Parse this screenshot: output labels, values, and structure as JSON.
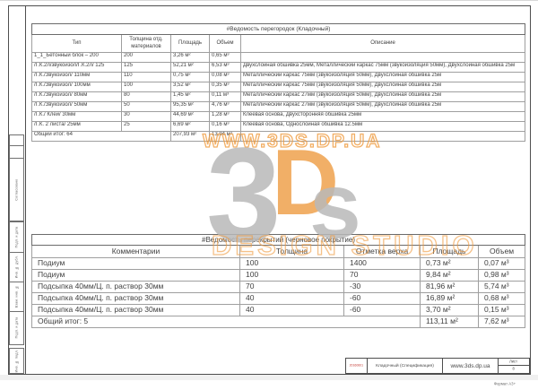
{
  "sheet": {
    "stamp_code": "20160601",
    "doc_title": "Кладочный (Спецификация)",
    "website": "www.3ds.dp.ua",
    "sheet_label": "Лист",
    "sheet_number": "8",
    "format_label": "Формат А3+"
  },
  "side_strip": {
    "approval_label": "Согласовано",
    "cells": [
      "Подп. и дата",
      "Инв. № дубл.",
      "Взам. инв. №",
      "Подп. и дата",
      "Инв. № подл."
    ]
  },
  "watermark": {
    "url_text": "WWW.3DS.DP.UA",
    "logo_3": "3",
    "logo_d": "D",
    "logo_s": "s",
    "studio_text": "DESIGN STUDIO",
    "orange": "#ee983a",
    "gray": "#b9b9b9"
  },
  "partitions_table": {
    "title": "#Ведомость перегородок (Кладочный)",
    "columns": [
      "Тип",
      "Толщина отд. материалов",
      "Площадь",
      "Объем",
      "Описание"
    ],
    "rows": [
      [
        "1_1_Бетонный блок – 200",
        "200",
        "3,26 м²",
        "0,65 м³",
        ""
      ],
      [
        "/Г.К.2л/звукоизол/Г.К.2л/ 125",
        "125",
        "52,21 м²",
        "6,53 м³",
        "Двухслойная обшивка 25мм, Металлический каркас 75мм (звукоизоляция 50мм), Двухслойная обшивка 25м"
      ],
      [
        "/Г.К./Звукоизол/ 110мм",
        "110",
        "0,75 м²",
        "0,08 м³",
        "Металлический каркас 75мм (звукоизоляция 50мм), Двухслойная обшивка 25м"
      ],
      [
        "/Г.К./Звукоизол/ 100мм",
        "100",
        "3,52 м²",
        "0,35 м³",
        "Металлический каркас 75мм (звукоизоляция 50мм), Двухслойная обшивка 25м"
      ],
      [
        "/Г.К./Звукоизол/ 80мм",
        "80",
        "1,45 м²",
        "0,11 м³",
        "Металлический каркас 27мм (звукоизоляция 50мм), Двухслойная обшивка 25м"
      ],
      [
        "/Г.К./Звукоизол/ 50мм",
        "50",
        "95,35 м²",
        "4,76 м³",
        "Металлический каркас 27мм (звукоизоляция 50мм), Двухслойная обшивка 25м"
      ],
      [
        "/Г.К./ Клей/ 30мм",
        "30",
        "44,69 м²",
        "1,28 м³",
        "Клеевая основа, Двухсторонняя обшивка 25мм"
      ],
      [
        "/Г.К. 2 листа/ 25мм",
        "25",
        "6,69 м²",
        "0,16 м³",
        "Клеевая основа, Однослойная обшивка 12.5мм"
      ]
    ],
    "total": {
      "label": "Общий итог: 64",
      "area": "207,93 м²",
      "volume": "13,94 м³"
    }
  },
  "floors_table": {
    "title": "#Ведомость перекрытий (черновое покрытие)",
    "columns": [
      "Комментарии",
      "Толщина",
      "Отметка верха",
      "Площадь",
      "Объем"
    ],
    "rows": [
      [
        "Подиум",
        "100",
        "1400",
        "0,73 м²",
        "0,07 м³"
      ],
      [
        "Подиум",
        "100",
        "70",
        "9,84 м²",
        "0,98 м³"
      ],
      [
        "Подсыпка 40мм/Ц. п. раствор 30мм",
        "70",
        "-30",
        "81,96 м²",
        "5,74 м³"
      ],
      [
        "Подсыпка 40мм/Ц. п. раствор 30мм",
        "40",
        "-60",
        "16,89 м²",
        "0,68 м³"
      ],
      [
        "Подсыпка 40мм/Ц. п. раствор 30мм",
        "40",
        "-60",
        "3,70 м²",
        "0,15 м³"
      ]
    ],
    "total": {
      "label": "Общий итог: 5",
      "area": "113,11 м²",
      "volume": "7,62 м³"
    }
  }
}
